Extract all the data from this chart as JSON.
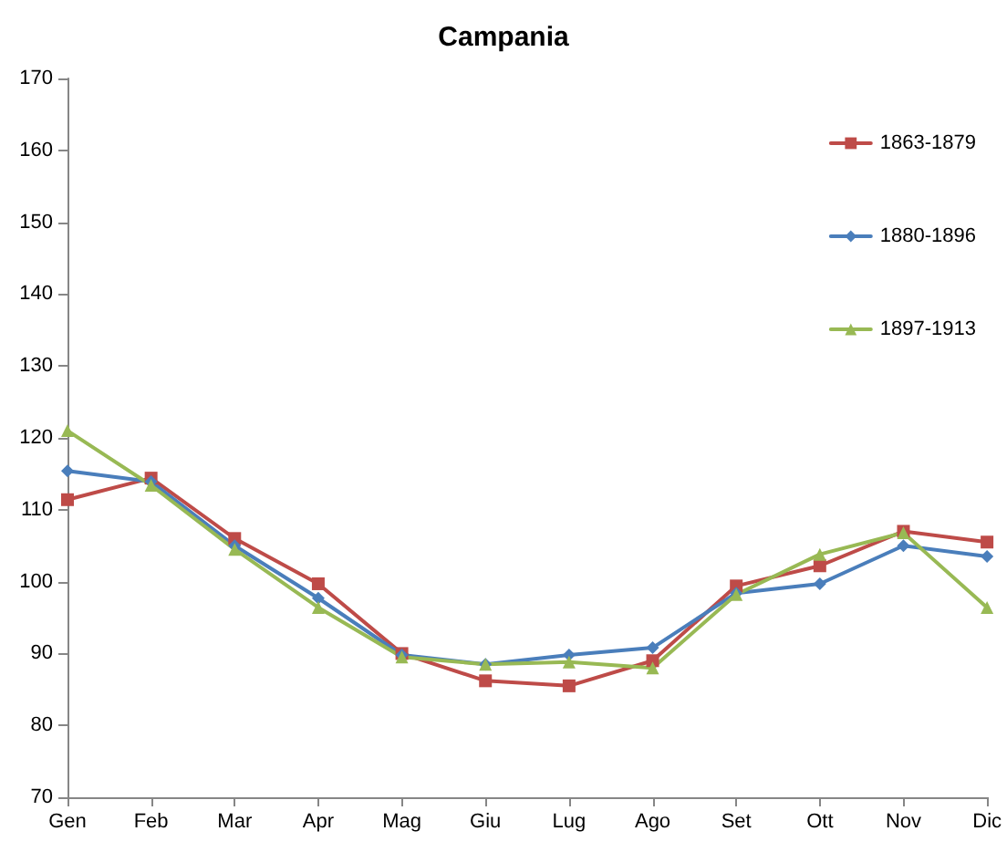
{
  "chart_data": {
    "type": "line",
    "title": "Campania",
    "categories": [
      "Gen",
      "Feb",
      "Mar",
      "Apr",
      "Mag",
      "Giu",
      "Lug",
      "Ago",
      "Set",
      "Ott",
      "Nov",
      "Dic"
    ],
    "series": [
      {
        "name": "1863-1879",
        "color": "#be4b48",
        "marker": "square",
        "values": [
          111.4,
          114.4,
          106,
          99.7,
          90,
          86.2,
          85.5,
          89,
          99.4,
          102.2,
          107,
          105.5
        ]
      },
      {
        "name": "1880-1896",
        "color": "#4a7ebb",
        "marker": "diamond",
        "values": [
          115.4,
          113.9,
          105,
          97.7,
          89.8,
          88.5,
          89.8,
          90.8,
          98.4,
          99.7,
          105,
          103.5
        ]
      },
      {
        "name": "1897-1913",
        "color": "#98b954",
        "marker": "triangle",
        "values": [
          121,
          113.4,
          104.5,
          96.4,
          89.5,
          88.5,
          88.8,
          88,
          98.2,
          103.8,
          106.8,
          96.4
        ]
      }
    ],
    "ylim": [
      70,
      170
    ],
    "yticks": [
      70,
      80,
      90,
      100,
      110,
      120,
      130,
      140,
      150,
      160,
      170
    ],
    "grid": false,
    "legend": "top right",
    "line_style": "solid"
  }
}
